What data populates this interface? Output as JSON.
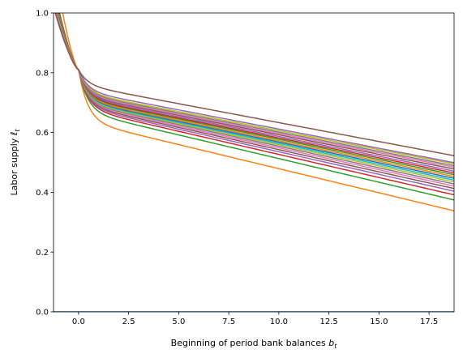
{
  "chart_data": {
    "type": "line",
    "xlabel": "Beginning of period bank balances",
    "xlabel_sub": "t",
    "ylabel": "Labor supply",
    "ylabel_sub": "t",
    "xlim": [
      -1.25,
      18.75
    ],
    "ylim": [
      0.0,
      1.0
    ],
    "xticks": [
      0.0,
      2.5,
      5.0,
      7.5,
      10.0,
      12.5,
      15.0,
      17.5
    ],
    "xtick_labels": [
      "0.0",
      "2.5",
      "5.0",
      "7.5",
      "10.0",
      "12.5",
      "15.0",
      "17.5"
    ],
    "yticks": [
      0.0,
      0.2,
      0.4,
      0.6,
      0.8,
      1.0
    ],
    "ytick_labels": [
      "0.0",
      "0.2",
      "0.4",
      "0.6",
      "0.8",
      "1.0"
    ],
    "grid": false,
    "legend": "none",
    "kink": [
      0.0,
      0.81
    ],
    "series": [
      {
        "color": "#1f77b4",
        "x": [
          -1.25,
          18.75
        ],
        "y": [
          0.0,
          0.0
        ]
      },
      {
        "color": "#ff7f0e",
        "y_start": 1.17,
        "y_mid": 0.61,
        "y_end": 0.34
      },
      {
        "color": "#2ca02c",
        "y_start": 1.09,
        "y_mid": 0.641,
        "y_end": 0.376
      },
      {
        "color": "#d62728",
        "y_start": 1.08,
        "y_mid": 0.652,
        "y_end": 0.393
      },
      {
        "color": "#9467bd",
        "y_start": 1.07,
        "y_mid": 0.658,
        "y_end": 0.405
      },
      {
        "color": "#8c564b",
        "y_start": 1.07,
        "y_mid": 0.663,
        "y_end": 0.414
      },
      {
        "color": "#e377c2",
        "y_start": 1.06,
        "y_mid": 0.667,
        "y_end": 0.422
      },
      {
        "color": "#7f7f7f",
        "y_start": 1.06,
        "y_mid": 0.671,
        "y_end": 0.429
      },
      {
        "color": "#bcbd22",
        "y_start": 1.06,
        "y_mid": 0.674,
        "y_end": 0.436
      },
      {
        "color": "#17becf",
        "y_start": 1.06,
        "y_mid": 0.677,
        "y_end": 0.442
      },
      {
        "color": "#1f77b4",
        "y_start": 1.05,
        "y_mid": 0.68,
        "y_end": 0.448
      },
      {
        "color": "#ff7f0e",
        "y_start": 1.05,
        "y_mid": 0.683,
        "y_end": 0.454
      },
      {
        "color": "#2ca02c",
        "y_start": 1.05,
        "y_mid": 0.687,
        "y_end": 0.46
      },
      {
        "color": "#d62728",
        "y_start": 1.05,
        "y_mid": 0.69,
        "y_end": 0.466
      },
      {
        "color": "#9467bd",
        "y_start": 1.04,
        "y_mid": 0.694,
        "y_end": 0.472
      },
      {
        "color": "#8c564b",
        "y_start": 1.04,
        "y_mid": 0.698,
        "y_end": 0.479
      },
      {
        "color": "#e377c2",
        "y_start": 1.04,
        "y_mid": 0.701,
        "y_end": 0.485
      },
      {
        "color": "#7f7f7f",
        "y_start": 1.04,
        "y_mid": 0.705,
        "y_end": 0.49
      },
      {
        "color": "#bcbd22",
        "y_start": 1.04,
        "y_mid": 0.709,
        "y_end": 0.496
      },
      {
        "color": "#9467bd",
        "y_start": 1.03,
        "y_mid": 0.715,
        "y_end": 0.5
      },
      {
        "color": "#8c564b",
        "y_start": 1.02,
        "y_mid": 0.735,
        "y_end": 0.523
      }
    ]
  }
}
